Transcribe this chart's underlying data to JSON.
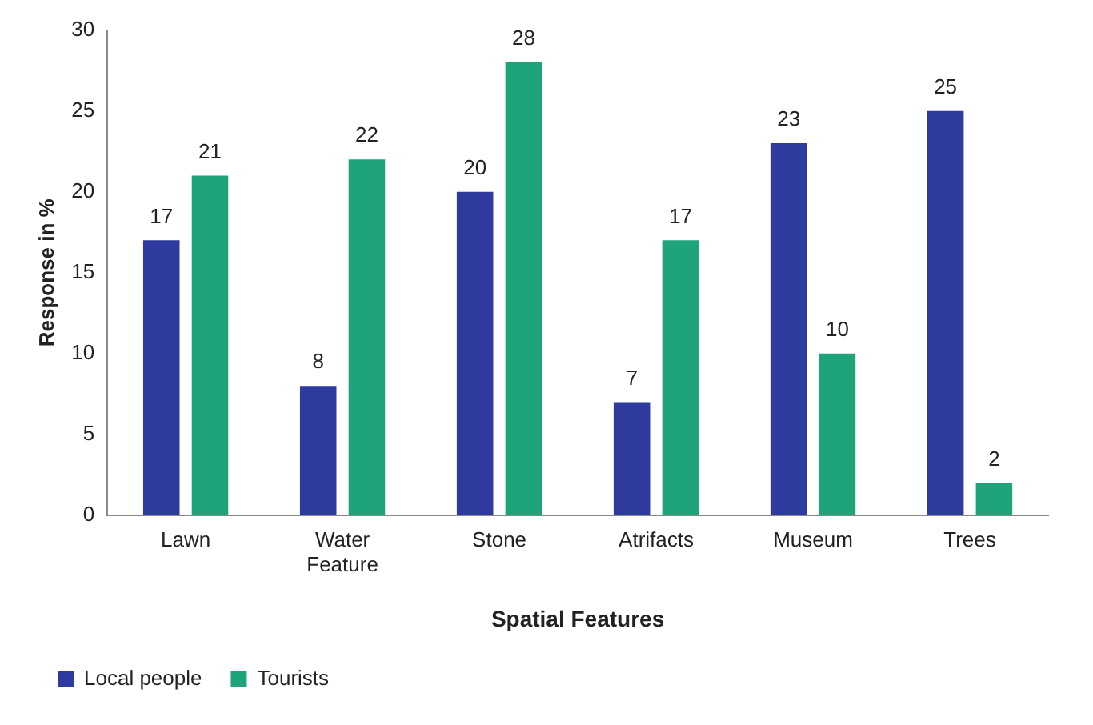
{
  "chart_data": {
    "type": "bar",
    "xlabel": "Spatial Features",
    "ylabel": "Response in %",
    "categories": [
      "Lawn",
      "Water Feature",
      "Stone",
      "Atrifacts",
      "Museum",
      "Trees"
    ],
    "series": [
      {
        "name": "Local people",
        "color": "#2e3a9e",
        "values": [
          17,
          8,
          20,
          7,
          23,
          25
        ]
      },
      {
        "name": "Tourists",
        "color": "#1fa37a",
        "values": [
          21,
          22,
          28,
          17,
          10,
          2
        ]
      }
    ],
    "ylim": [
      0,
      30
    ],
    "yticks": [
      0,
      5,
      10,
      15,
      20,
      25,
      30
    ],
    "grid": false,
    "legend": "bottom left",
    "data_labels": true
  }
}
